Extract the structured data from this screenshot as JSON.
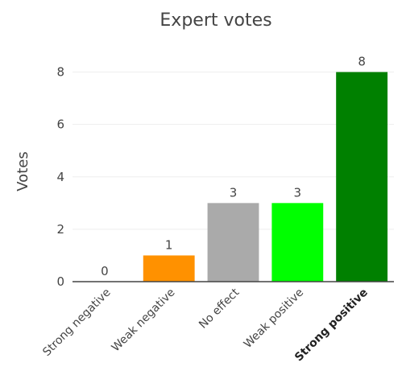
{
  "chart_data": {
    "type": "bar",
    "title": "Expert votes",
    "xlabel": "",
    "ylabel": "Votes",
    "categories": [
      "Strong negative",
      "Weak negative",
      "No effect",
      "Weak positive",
      "Strong positive"
    ],
    "values": [
      0,
      1,
      3,
      3,
      8
    ],
    "data_labels": [
      "0",
      "1",
      "3",
      "3",
      "8"
    ],
    "colors": [
      "#d62728",
      "#ff9100",
      "#aaaaaa",
      "#00ff00",
      "#008000"
    ],
    "highlighted_category": "Strong positive",
    "ylim": [
      0,
      8.6
    ],
    "yticks": [
      0,
      2,
      4,
      6,
      8
    ],
    "ytick_labels": [
      "0",
      "2",
      "4",
      "6",
      "8"
    ],
    "grid": true,
    "legend": "none"
  }
}
